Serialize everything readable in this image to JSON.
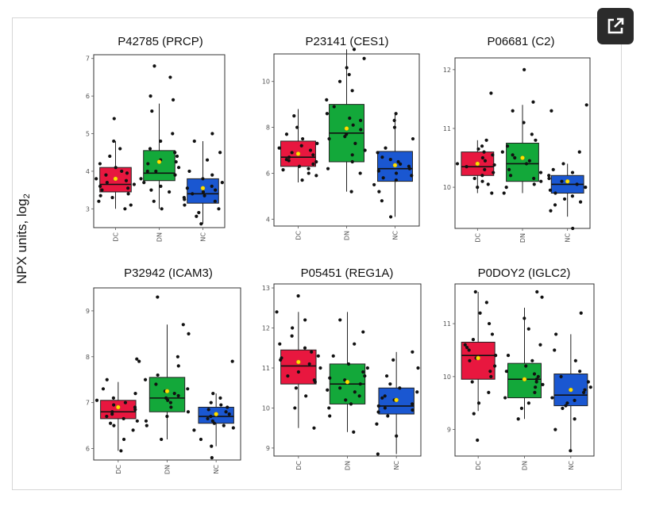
{
  "ylabel_main": "NPX units, log",
  "ylabel_sub": "2",
  "popout_icon": "external-link-icon",
  "colors": {
    "DC": "#e8173f",
    "DN": "#13a83a",
    "NC": "#1a57d1",
    "mean": "#ffe000",
    "point": "#111111"
  },
  "chart_data": [
    {
      "type": "box",
      "title": "P42785 (PRCP)",
      "categories": [
        "DC",
        "DN",
        "NC"
      ],
      "yticks": [
        3,
        4,
        5,
        6,
        7
      ],
      "ylim": [
        2.5,
        7.1
      ],
      "boxes": [
        {
          "min": 3.0,
          "q1": 3.45,
          "median": 3.65,
          "q3": 4.1,
          "max": 4.8,
          "mean": 3.8,
          "points": [
            3.0,
            3.2,
            3.3,
            3.4,
            3.5,
            3.55,
            3.6,
            3.65,
            3.7,
            3.75,
            3.8,
            3.9,
            4.0,
            4.1,
            4.2,
            4.4,
            4.6,
            4.8,
            5.4,
            3.35,
            3.95,
            3.1
          ]
        },
        {
          "min": 3.0,
          "q1": 3.75,
          "median": 3.95,
          "q3": 4.55,
          "max": 5.8,
          "mean": 4.25,
          "points": [
            3.0,
            3.2,
            3.5,
            3.6,
            3.7,
            3.8,
            3.9,
            4.0,
            4.0,
            4.1,
            4.2,
            4.3,
            4.4,
            4.5,
            4.6,
            4.8,
            5.0,
            5.6,
            5.9,
            6.0,
            6.5,
            6.8,
            3.45,
            4.25
          ]
        },
        {
          "min": 2.6,
          "q1": 3.15,
          "median": 3.4,
          "q3": 3.8,
          "max": 4.8,
          "mean": 3.55,
          "points": [
            2.6,
            2.8,
            3.0,
            3.1,
            3.2,
            3.3,
            3.35,
            3.4,
            3.45,
            3.5,
            3.6,
            3.7,
            3.8,
            3.9,
            4.0,
            4.3,
            4.5,
            4.8,
            5.0,
            3.25,
            3.55,
            2.9
          ]
        }
      ]
    },
    {
      "type": "box",
      "title": "P23141 (CES1)",
      "categories": [
        "DC",
        "DN",
        "NC"
      ],
      "yticks": [
        4,
        6,
        8,
        10
      ],
      "ylim": [
        3.7,
        11.2
      ],
      "boxes": [
        {
          "min": 5.6,
          "q1": 6.3,
          "median": 6.7,
          "q3": 7.4,
          "max": 8.8,
          "mean": 6.85,
          "points": [
            5.7,
            5.9,
            6.0,
            6.2,
            6.3,
            6.4,
            6.5,
            6.6,
            6.7,
            6.8,
            6.9,
            7.0,
            7.1,
            7.3,
            7.5,
            7.7,
            8.0,
            8.5,
            6.15,
            6.55,
            7.2
          ]
        },
        {
          "min": 5.2,
          "q1": 6.5,
          "median": 7.75,
          "q3": 9.0,
          "max": 11.4,
          "mean": 7.95,
          "points": [
            5.2,
            6.0,
            6.5,
            6.8,
            7.0,
            7.3,
            7.5,
            7.7,
            7.9,
            8.1,
            8.3,
            8.6,
            8.9,
            9.2,
            9.6,
            10.0,
            10.3,
            10.6,
            11.0,
            11.4,
            6.2,
            7.6,
            8.4
          ]
        },
        {
          "min": 4.1,
          "q1": 5.65,
          "median": 6.2,
          "q3": 6.95,
          "max": 8.6,
          "mean": 6.35,
          "points": [
            4.1,
            4.8,
            5.2,
            5.5,
            5.7,
            5.9,
            6.0,
            6.1,
            6.2,
            6.3,
            6.4,
            6.5,
            6.7,
            6.9,
            7.1,
            7.5,
            8.0,
            8.3,
            8.6,
            5.8,
            6.6
          ]
        }
      ]
    },
    {
      "type": "box",
      "title": "P06681 (C2)",
      "categories": [
        "DC",
        "DN",
        "NC"
      ],
      "yticks": [
        10,
        11,
        12
      ],
      "ylim": [
        9.3,
        12.2
      ],
      "boxes": [
        {
          "min": 9.9,
          "q1": 10.2,
          "median": 10.35,
          "q3": 10.6,
          "max": 10.8,
          "mean": 10.4,
          "points": [
            9.9,
            10.0,
            10.1,
            10.15,
            10.2,
            10.25,
            10.3,
            10.35,
            10.4,
            10.45,
            10.5,
            10.55,
            10.6,
            10.65,
            10.7,
            10.8,
            11.6,
            10.05,
            10.38
          ]
        },
        {
          "min": 9.9,
          "q1": 10.1,
          "median": 10.4,
          "q3": 10.75,
          "max": 11.4,
          "mean": 10.5,
          "points": [
            9.9,
            10.0,
            10.05,
            10.1,
            10.15,
            10.2,
            10.3,
            10.4,
            10.45,
            10.5,
            10.6,
            10.7,
            10.8,
            10.9,
            11.1,
            11.3,
            11.45,
            12.0,
            10.25,
            10.55
          ]
        },
        {
          "min": 9.5,
          "q1": 9.9,
          "median": 10.05,
          "q3": 10.2,
          "max": 10.4,
          "mean": 10.1,
          "points": [
            9.3,
            9.6,
            9.7,
            9.8,
            9.85,
            9.9,
            9.95,
            10.0,
            10.05,
            10.1,
            10.15,
            10.2,
            10.25,
            10.3,
            10.4,
            10.6,
            11.3,
            11.4,
            9.75
          ]
        }
      ]
    },
    {
      "type": "box",
      "title": "P32942 (ICAM3)",
      "categories": [
        "DC",
        "DN",
        "NC"
      ],
      "yticks": [
        6,
        7,
        8,
        9
      ],
      "ylim": [
        5.75,
        9.5
      ],
      "boxes": [
        {
          "min": 5.95,
          "q1": 6.65,
          "median": 6.8,
          "q3": 7.05,
          "max": 7.45,
          "mean": 6.9,
          "points": [
            5.95,
            6.2,
            6.4,
            6.5,
            6.6,
            6.65,
            6.7,
            6.75,
            6.8,
            6.85,
            6.9,
            6.95,
            7.0,
            7.05,
            7.1,
            7.2,
            7.3,
            7.5,
            7.9,
            7.95,
            6.55
          ]
        },
        {
          "min": 6.2,
          "q1": 6.8,
          "median": 7.1,
          "q3": 7.55,
          "max": 8.7,
          "mean": 7.25,
          "points": [
            6.2,
            6.5,
            6.7,
            6.8,
            6.9,
            7.0,
            7.05,
            7.1,
            7.15,
            7.2,
            7.3,
            7.4,
            7.5,
            7.6,
            7.8,
            8.0,
            8.5,
            8.7,
            9.3,
            6.6,
            7.25
          ]
        },
        {
          "min": 6.05,
          "q1": 6.55,
          "median": 6.7,
          "q3": 6.9,
          "max": 7.2,
          "mean": 6.75,
          "points": [
            5.8,
            6.05,
            6.2,
            6.4,
            6.5,
            6.55,
            6.6,
            6.65,
            6.7,
            6.75,
            6.8,
            6.85,
            6.9,
            7.0,
            7.1,
            7.2,
            7.9,
            6.45,
            6.95
          ]
        }
      ]
    },
    {
      "type": "box",
      "title": "P05451 (REG1A)",
      "categories": [
        "DC",
        "DN",
        "NC"
      ],
      "yticks": [
        9,
        10,
        11,
        12,
        13
      ],
      "ylim": [
        8.8,
        13.1
      ],
      "boxes": [
        {
          "min": 9.5,
          "q1": 10.6,
          "median": 11.05,
          "q3": 11.45,
          "max": 12.4,
          "mean": 11.15,
          "points": [
            9.5,
            10.0,
            10.3,
            10.5,
            10.7,
            10.8,
            10.9,
            11.0,
            11.1,
            11.2,
            11.3,
            11.4,
            11.5,
            11.6,
            11.8,
            12.0,
            12.2,
            12.4,
            12.8,
            10.65,
            11.25
          ]
        },
        {
          "min": 9.4,
          "q1": 10.1,
          "median": 10.6,
          "q3": 11.1,
          "max": 12.4,
          "mean": 10.65,
          "points": [
            9.4,
            9.8,
            10.0,
            10.1,
            10.2,
            10.3,
            10.4,
            10.5,
            10.6,
            10.7,
            10.8,
            10.9,
            11.0,
            11.1,
            11.3,
            11.6,
            11.9,
            12.2,
            10.45,
            10.75
          ]
        },
        {
          "min": 8.85,
          "q1": 9.85,
          "median": 10.05,
          "q3": 10.5,
          "max": 11.4,
          "mean": 10.2,
          "points": [
            8.85,
            9.3,
            9.6,
            9.8,
            9.9,
            10.0,
            10.05,
            10.1,
            10.2,
            10.3,
            10.4,
            10.5,
            10.6,
            10.8,
            11.0,
            11.2,
            11.4,
            9.95,
            10.25
          ]
        }
      ]
    },
    {
      "type": "box",
      "title": "P0DOY2 (IGLC2)",
      "categories": [
        "DC",
        "DN",
        "NC"
      ],
      "yticks": [
        9,
        10,
        11
      ],
      "ylim": [
        8.5,
        11.75
      ],
      "boxes": [
        {
          "min": 9.35,
          "q1": 9.95,
          "median": 10.4,
          "q3": 10.65,
          "max": 11.6,
          "mean": 10.35,
          "points": [
            8.8,
            9.3,
            9.5,
            9.7,
            9.9,
            10.0,
            10.1,
            10.2,
            10.3,
            10.4,
            10.5,
            10.6,
            10.7,
            10.8,
            11.0,
            11.2,
            11.4,
            11.6,
            10.35,
            10.55
          ]
        },
        {
          "min": 9.2,
          "q1": 9.6,
          "median": 9.95,
          "q3": 10.25,
          "max": 11.3,
          "mean": 9.95,
          "points": [
            9.2,
            9.4,
            9.5,
            9.6,
            9.7,
            9.8,
            9.9,
            9.95,
            10.0,
            10.1,
            10.2,
            10.3,
            10.4,
            10.6,
            10.9,
            11.1,
            11.5,
            11.6,
            9.85,
            10.05
          ]
        },
        {
          "min": 8.6,
          "q1": 9.45,
          "median": 9.65,
          "q3": 10.05,
          "max": 10.8,
          "mean": 9.75,
          "points": [
            8.6,
            9.0,
            9.2,
            9.4,
            9.5,
            9.55,
            9.6,
            9.7,
            9.8,
            9.9,
            10.0,
            10.1,
            10.3,
            10.5,
            10.8,
            11.2,
            9.45,
            9.75
          ]
        }
      ]
    }
  ]
}
